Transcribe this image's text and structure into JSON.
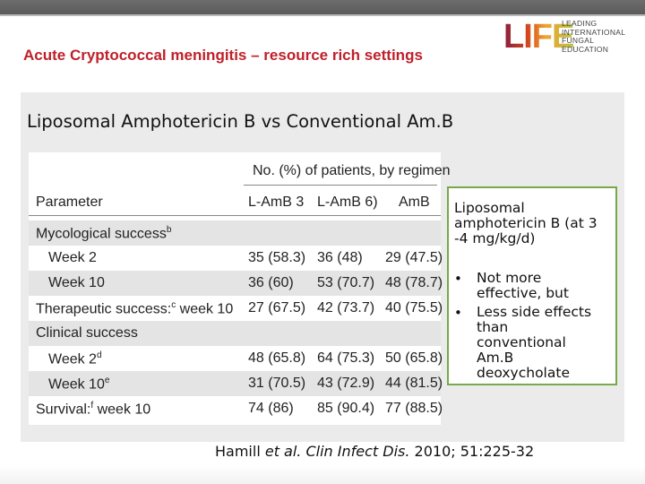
{
  "header": {
    "title": "Acute Cryptococcal meningitis – resource rich settings"
  },
  "logo": {
    "word": "LIFE",
    "lines": [
      "LEADING",
      "INTERNATIONAL",
      "FUNGAL",
      "EDUCATION"
    ]
  },
  "subtitle": "Liposomal Amphotericin B vs Conventional Am.B",
  "table": {
    "group_header": "No. (%) of patients, by regimen",
    "columns": [
      "Parameter",
      "L-AmB 3",
      "L-AmB 6)",
      "AmB"
    ],
    "rows": [
      {
        "param": "Mycological success",
        "sup": "b",
        "v1": "",
        "v2": "",
        "v3": ""
      },
      {
        "param": "Week 2",
        "sup": "",
        "v1": "35 (58.3)",
        "v2": "36 (48)",
        "v3": "29 (47.5)"
      },
      {
        "param": "Week 10",
        "sup": "",
        "v1": "36 (60)",
        "v2": "53 (70.7)",
        "v3": "48 (78.7)"
      },
      {
        "param": "Therapeutic success:",
        "sup": "c",
        "param_suffix": " week 10",
        "v1": "27 (67.5)",
        "v2": "42 (73.7)",
        "v3": "40 (75.5)"
      },
      {
        "param": "Clinical success",
        "sup": "",
        "v1": "",
        "v2": "",
        "v3": ""
      },
      {
        "param": "Week 2",
        "sup": "d",
        "v1": "48 (65.8)",
        "v2": "64 (75.3)",
        "v3": "50 (65.8)"
      },
      {
        "param": "Week 10",
        "sup": "e",
        "v1": "31 (70.5)",
        "v2": "43 (72.9)",
        "v3": "44 (81.5)"
      },
      {
        "param": "Survival:",
        "sup": "f",
        "param_suffix": " week 10",
        "v1": "74 (86)",
        "v2": "85 (90.4)",
        "v3": "77 (88.5)"
      }
    ]
  },
  "callout": {
    "heading_lines": [
      "Liposomal",
      "amphotericin B (at 3",
      "-4 mg/kg/d)"
    ],
    "bullet_char": "•",
    "bullet1_lines": [
      "Not more",
      "effective, but"
    ],
    "bullet2_lines": [
      "Less side effects",
      "than",
      "conventional",
      "Am.B",
      "deoxycholate"
    ]
  },
  "citation": {
    "authors": "Hamill ",
    "etal": "et al.",
    "journal": " Clin Infect Dis.",
    "details": " 2010; 51:225-32"
  },
  "colors": {
    "title": "#c0202a",
    "callout_border": "#77a84a",
    "panel": "#ebebeb",
    "shaded_row": "#e4e4e4"
  }
}
